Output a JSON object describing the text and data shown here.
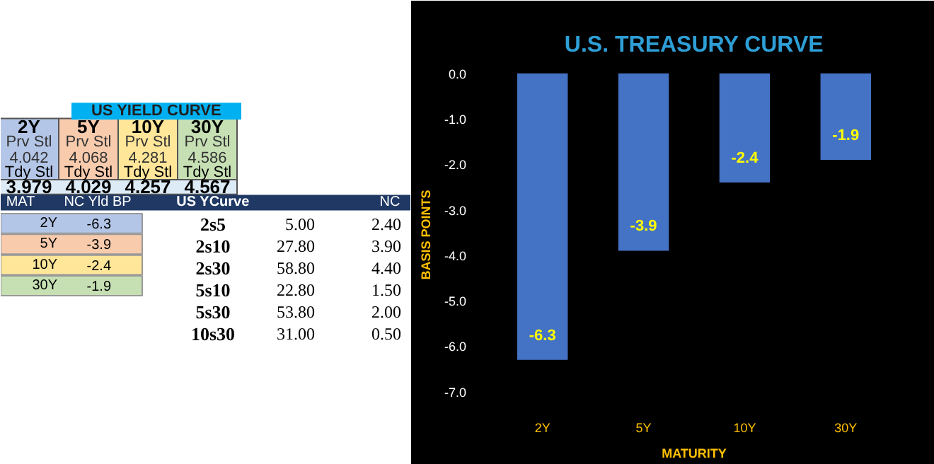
{
  "chart_data": [
    {
      "type": "other",
      "title": "US YIELD CURVE",
      "annotations": [
        "2Y",
        "5Y",
        "10Y",
        "30Y",
        "Prv Stl",
        "Prv Stl",
        "Prv Stl",
        "Prv Stl",
        "4.042",
        "4.068",
        "4.281",
        "4.586",
        "Tdy Stl",
        "Tdy Stl",
        "Tdy Stl",
        "Tdy Stl",
        "3.979",
        "4.029",
        "4.257",
        "4.567",
        "MAT",
        "NC Yld  BP",
        "2Y",
        "-6.3",
        "5Y",
        "-3.9",
        "10Y",
        "-2.4",
        "30Y",
        "-1.9",
        "US YCurve",
        "NC",
        "2s5",
        "5.00",
        "2.40",
        "2s10",
        "27.80",
        "3.90",
        "2s30",
        "58.80",
        "4.40",
        "5s10",
        "22.80",
        "1.50",
        "5s30",
        "53.80",
        "2.00",
        "10s30",
        "31.00",
        "0.50"
      ]
    },
    {
      "type": "bar",
      "title": "U.S. TREASURY CURVE",
      "xlabel": "MATURITY",
      "ylabel": "BASIS POINTS",
      "categories": [
        "2Y",
        "5Y",
        "10Y",
        "30Y"
      ],
      "values": [
        -6.3,
        -3.9,
        -2.4,
        -1.9
      ],
      "color": "#4472c4",
      "data_labels": true,
      "ylim": [
        -7.3,
        0.2
      ],
      "yticks": [
        {
          "value": 0,
          "label": "0.0"
        },
        {
          "value": -1,
          "label": "-1.0"
        },
        {
          "value": -2,
          "label": "-2.0"
        },
        {
          "value": -3,
          "label": "-3.0"
        },
        {
          "value": -4,
          "label": "-4.0"
        },
        {
          "value": -5,
          "label": "-5.0"
        },
        {
          "value": -6,
          "label": "-6.0"
        },
        {
          "value": -7,
          "label": "-7.0"
        }
      ],
      "grid": false
    }
  ]
}
